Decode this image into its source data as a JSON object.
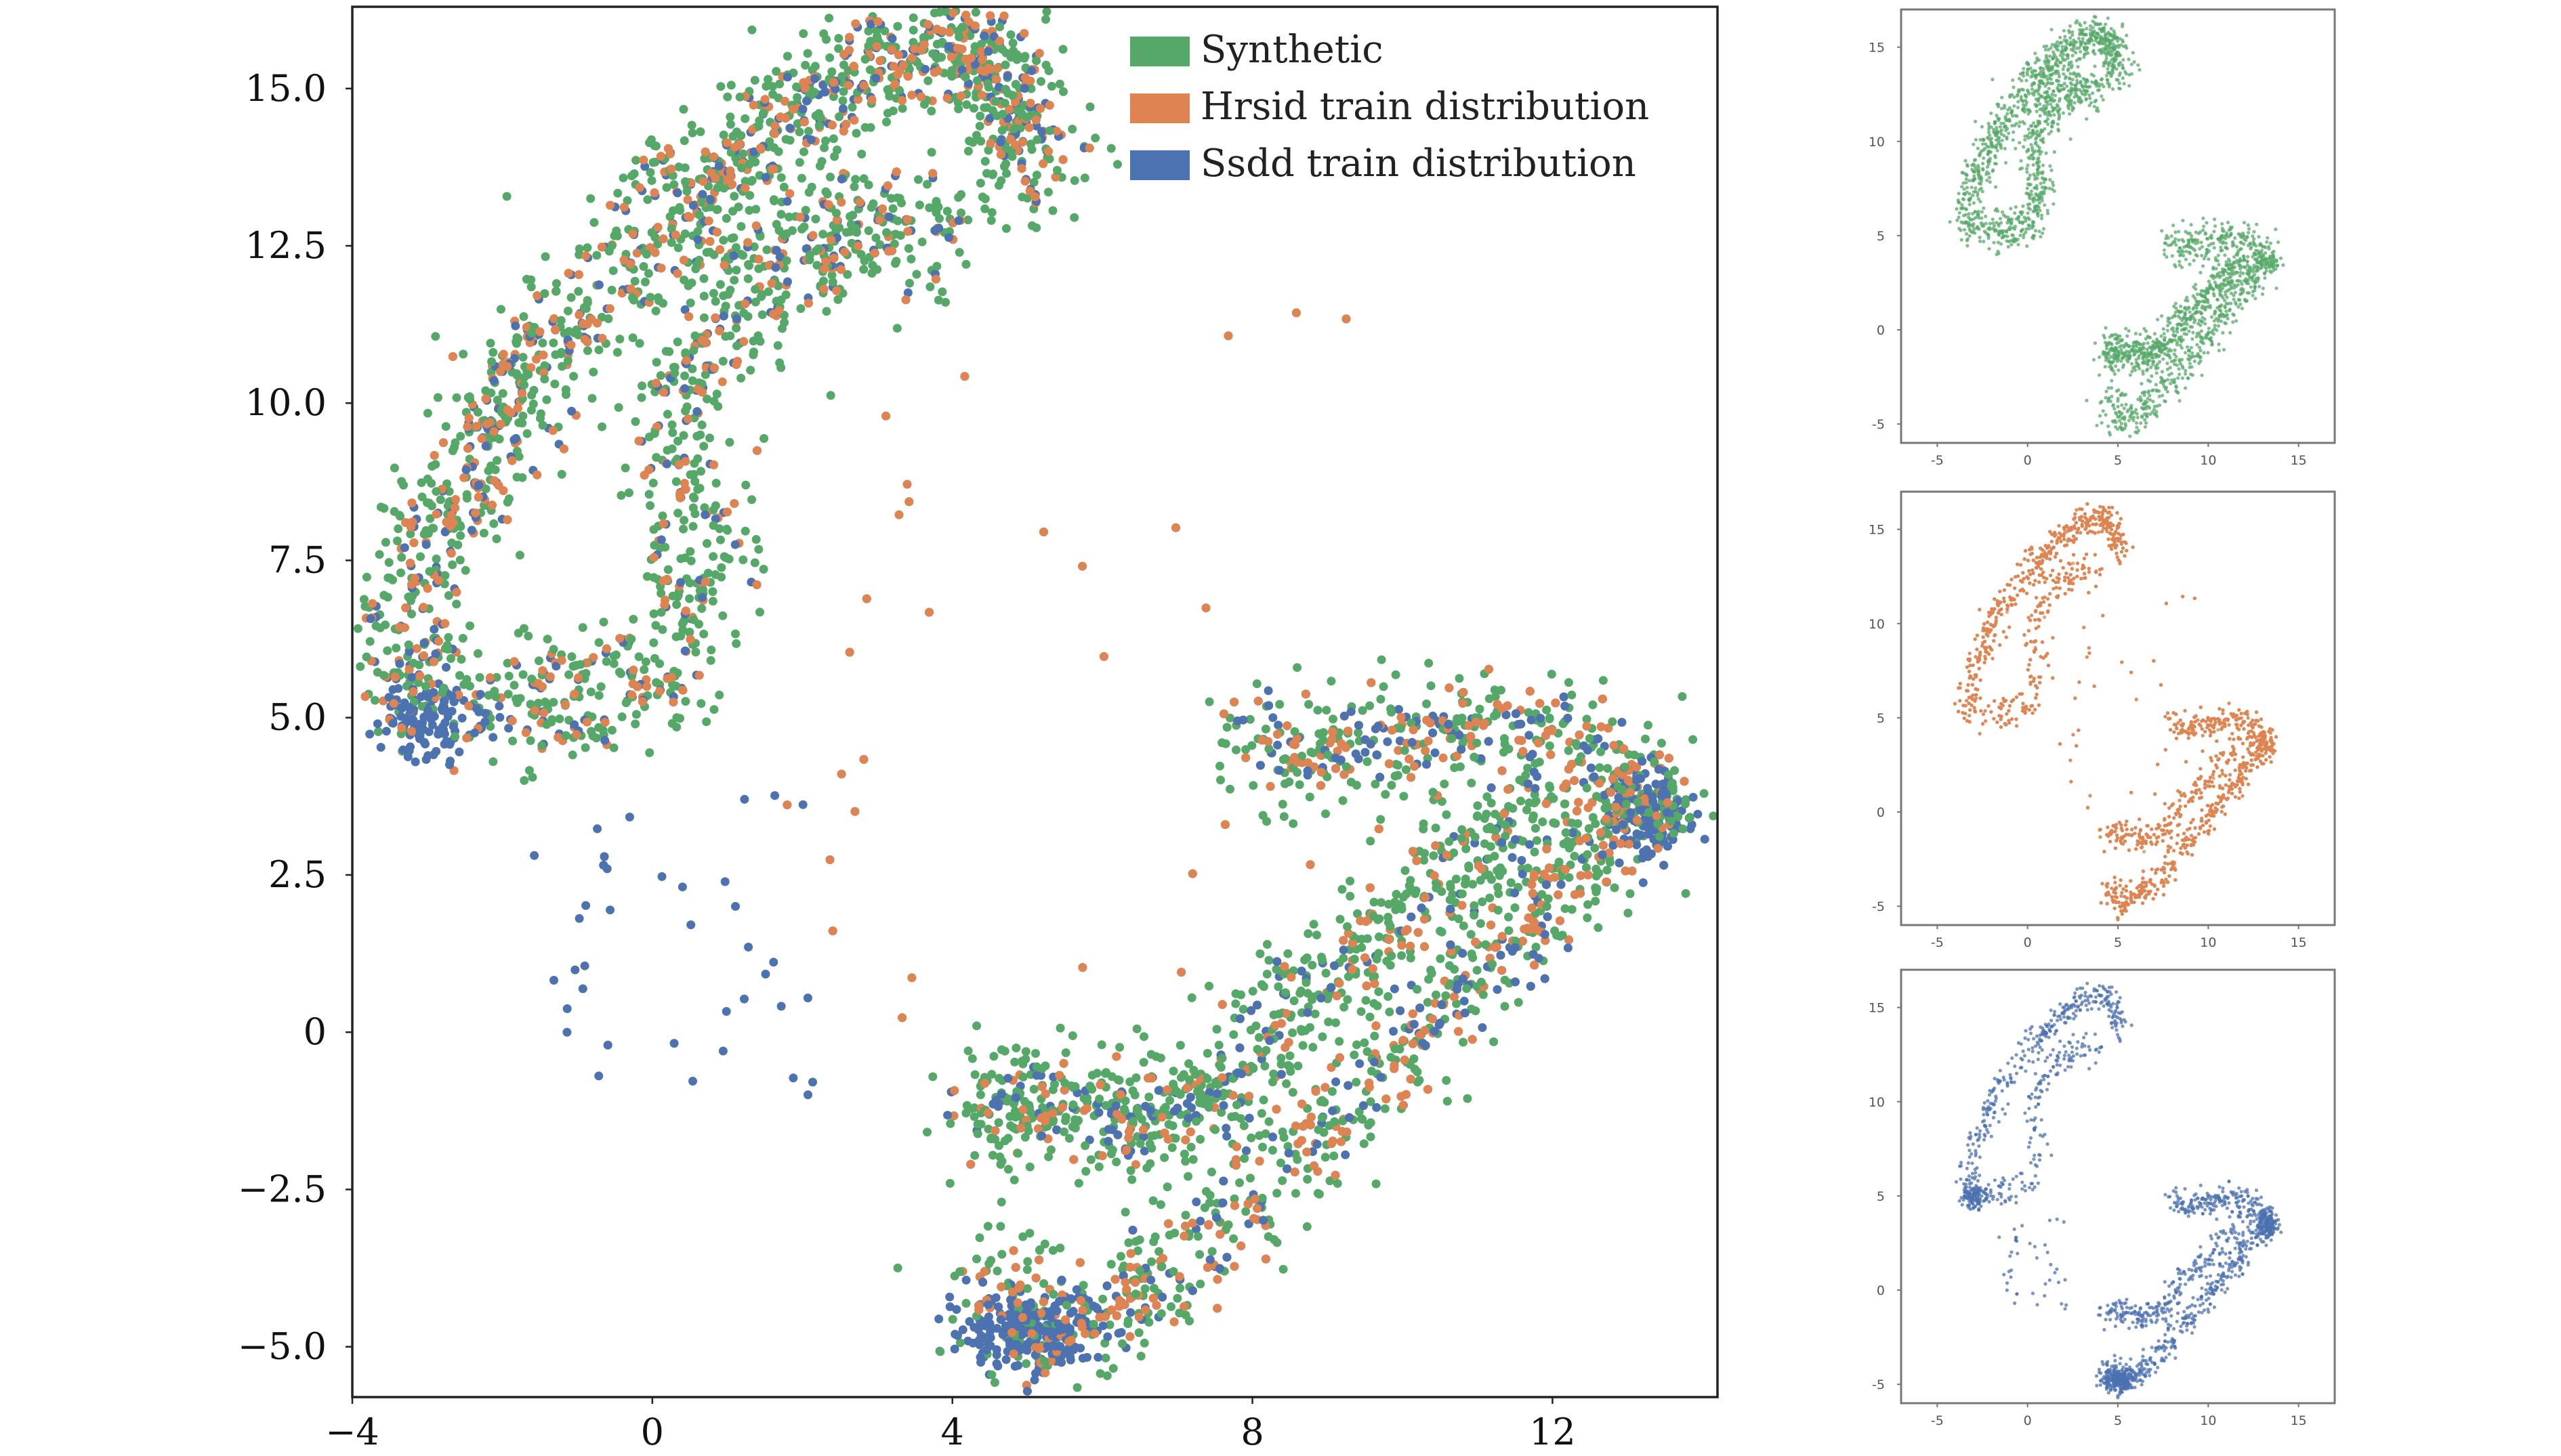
{
  "chart_data": [
    {
      "type": "scatter",
      "id": "combined",
      "title": "",
      "xlabel": "",
      "ylabel": "",
      "xlim": [
        -4,
        14.2
      ],
      "ylim": [
        -5.8,
        16.3
      ],
      "xticks": [
        -4,
        0,
        4,
        8,
        12
      ],
      "xtick_labels": [
        "−4",
        "0",
        "4",
        "8",
        "12"
      ],
      "yticks": [
        -5.0,
        -2.5,
        0,
        2.5,
        5.0,
        7.5,
        10.0,
        12.5,
        15.0
      ],
      "ytick_labels": [
        "−5.0",
        "−2.5",
        "0",
        "2.5",
        "5.0",
        "7.5",
        "10.0",
        "12.5",
        "15.0"
      ],
      "grid": false,
      "legend_position": "top-right",
      "series": [
        {
          "name": "Synthetic",
          "color": "#55a868",
          "point_count": 2600,
          "clusters": [
            {
              "x_range": [
                -3.5,
                5.5
              ],
              "y_range": [
                4.5,
                16.0
              ],
              "shape": "upper-arc"
            },
            {
              "x_range": [
                3.5,
                13.8
              ],
              "y_range": [
                -5.3,
                5.0
              ],
              "shape": "lower-arc"
            }
          ]
        },
        {
          "name": "Hrsid train distribution",
          "color": "#dd8452",
          "point_count": 3800,
          "clusters": [
            {
              "x_range": [
                -3.5,
                5.5
              ],
              "y_range": [
                4.5,
                16.0
              ],
              "shape": "upper-arc"
            },
            {
              "x_range": [
                3.5,
                13.8
              ],
              "y_range": [
                -5.3,
                5.0
              ],
              "shape": "lower-arc"
            },
            {
              "x_range": [
                1.5,
                11.0
              ],
              "y_range": [
                -1.0,
                12.5
              ],
              "shape": "sparse-bridge"
            }
          ]
        },
        {
          "name": "Ssdd train distribution",
          "color": "#4c72b0",
          "point_count": 1400,
          "clusters": [
            {
              "x_range": [
                -3.5,
                4.5
              ],
              "y_range": [
                4.5,
                16.0
              ],
              "shape": "upper-arc"
            },
            {
              "x_range": [
                3.8,
                13.8
              ],
              "y_range": [
                -5.3,
                4.5
              ],
              "shape": "lower-arc"
            },
            {
              "x_range": [
                -1.5,
                2.5
              ],
              "y_range": [
                -1.0,
                4.0
              ],
              "shape": "sparse-bridge"
            }
          ]
        }
      ]
    },
    {
      "type": "scatter",
      "id": "small-synthetic",
      "series_ref": "Synthetic",
      "color": "#55a868",
      "xlim": [
        -7,
        17
      ],
      "ylim": [
        -6,
        17
      ],
      "xticks": [
        -5,
        0,
        5,
        10,
        15
      ],
      "xtick_labels": [
        "-5",
        "0",
        "5",
        "10",
        "15"
      ],
      "yticks": [
        -5,
        0,
        5,
        10,
        15
      ],
      "ytick_labels": [
        "-5",
        "0",
        "5",
        "10",
        "15"
      ]
    },
    {
      "type": "scatter",
      "id": "small-hrsid",
      "series_ref": "Hrsid train distribution",
      "color": "#dd8452",
      "xlim": [
        -7,
        17
      ],
      "ylim": [
        -6,
        17
      ],
      "xticks": [
        -5,
        0,
        5,
        10,
        15
      ],
      "xtick_labels": [
        "-5",
        "0",
        "5",
        "10",
        "15"
      ],
      "yticks": [
        -5,
        0,
        5,
        10,
        15
      ],
      "ytick_labels": [
        "-5",
        "0",
        "5",
        "10",
        "15"
      ]
    },
    {
      "type": "scatter",
      "id": "small-ssdd",
      "series_ref": "Ssdd train distribution",
      "color": "#4c72b0",
      "xlim": [
        -7,
        17
      ],
      "ylim": [
        -6,
        17
      ],
      "xticks": [
        -5,
        0,
        5,
        10,
        15
      ],
      "xtick_labels": [
        "-5",
        "0",
        "5",
        "10",
        "15"
      ],
      "yticks": [
        -5,
        0,
        5,
        10,
        15
      ],
      "ytick_labels": [
        "-5",
        "0",
        "5",
        "10",
        "15"
      ]
    }
  ],
  "legend": {
    "items": [
      {
        "label": "Synthetic",
        "color": "#55a868"
      },
      {
        "label": "Hrsid train distribution",
        "color": "#dd8452"
      },
      {
        "label": "Ssdd train distribution",
        "color": "#4c72b0"
      }
    ]
  }
}
